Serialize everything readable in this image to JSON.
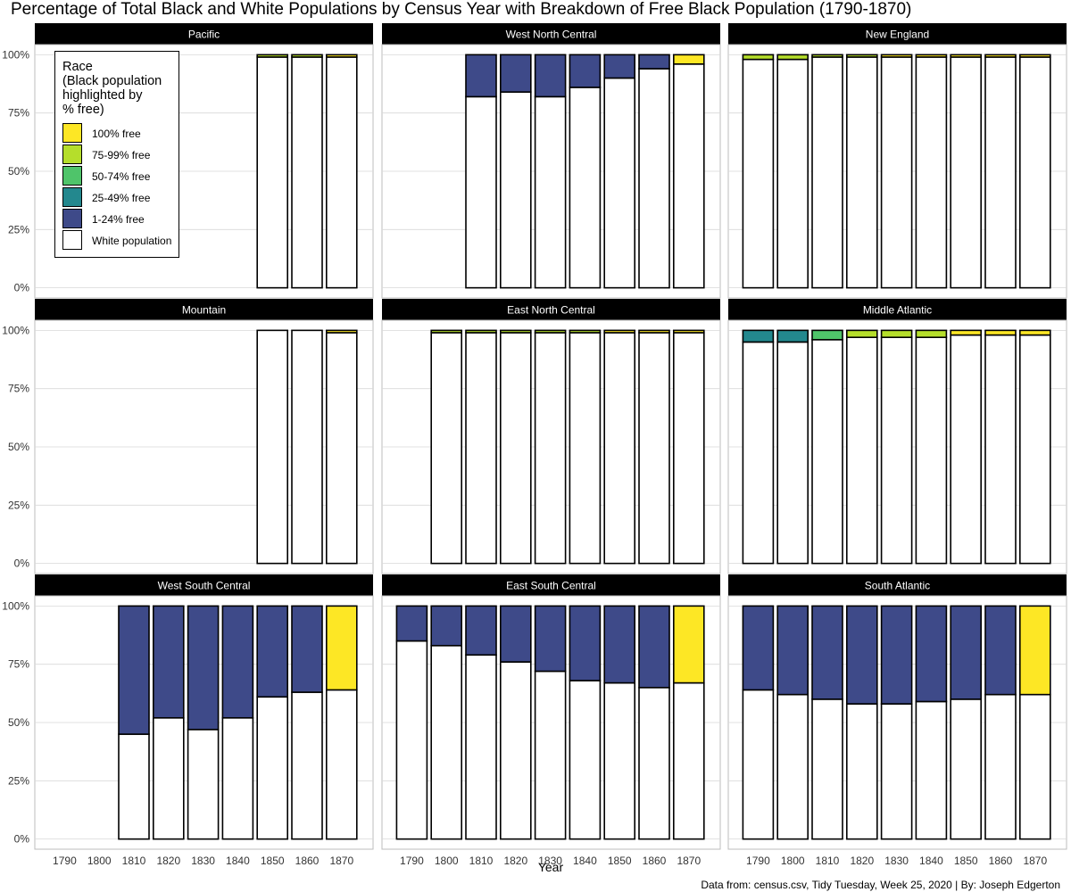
{
  "chart_data": {
    "type": "bar",
    "stacked": true,
    "title": "Percentage of Total Black and White Populations by Census Year with Breakdown of Free Black Population (1790-1870)",
    "xlabel": "Year",
    "ylabel": "",
    "ylim": [
      0,
      1
    ],
    "yticks": [
      "0%",
      "25%",
      "50%",
      "75%",
      "100%"
    ],
    "categories": [
      "1790",
      "1800",
      "1810",
      "1820",
      "1830",
      "1840",
      "1850",
      "1860",
      "1870"
    ],
    "grid": true,
    "legend_position": "top-left",
    "caption": "Data from: census.csv, Tidy Tuesday, Week 25, 2020 | By: Joseph Edgerton",
    "legend": {
      "title": "Race\n(Black population\nhighlighted by\n% free)",
      "items": [
        {
          "key": "free100",
          "label": "100% free",
          "color": "#FDE725"
        },
        {
          "key": "free75",
          "label": "75-99% free",
          "color": "#B5DE2B"
        },
        {
          "key": "free50",
          "label": "50-74% free",
          "color": "#4FC46A"
        },
        {
          "key": "free25",
          "label": "25-49% free",
          "color": "#23888E"
        },
        {
          "key": "free1",
          "label": "1-24% free",
          "color": "#3E4A89"
        },
        {
          "key": "white",
          "label": "White population",
          "color": "#FFFFFF"
        }
      ]
    },
    "panels": [
      {
        "name": "Pacific",
        "bars": [
          {
            "year": "1850",
            "white": 0.99,
            "black": 0.01,
            "black_category": "free75"
          },
          {
            "year": "1860",
            "white": 0.99,
            "black": 0.01,
            "black_category": "free75"
          },
          {
            "year": "1870",
            "white": 0.99,
            "black": 0.01,
            "black_category": "free100"
          }
        ]
      },
      {
        "name": "West North Central",
        "bars": [
          {
            "year": "1810",
            "white": 0.82,
            "black": 0.18,
            "black_category": "free1"
          },
          {
            "year": "1820",
            "white": 0.84,
            "black": 0.16,
            "black_category": "free1"
          },
          {
            "year": "1830",
            "white": 0.82,
            "black": 0.18,
            "black_category": "free1"
          },
          {
            "year": "1840",
            "white": 0.86,
            "black": 0.14,
            "black_category": "free1"
          },
          {
            "year": "1850",
            "white": 0.9,
            "black": 0.1,
            "black_category": "free1"
          },
          {
            "year": "1860",
            "white": 0.94,
            "black": 0.06,
            "black_category": "free1"
          },
          {
            "year": "1870",
            "white": 0.96,
            "black": 0.04,
            "black_category": "free100"
          }
        ]
      },
      {
        "name": "New England",
        "bars": [
          {
            "year": "1790",
            "white": 0.98,
            "black": 0.02,
            "black_category": "free75"
          },
          {
            "year": "1800",
            "white": 0.98,
            "black": 0.02,
            "black_category": "free75"
          },
          {
            "year": "1810",
            "white": 0.99,
            "black": 0.01,
            "black_category": "free75"
          },
          {
            "year": "1820",
            "white": 0.99,
            "black": 0.01,
            "black_category": "free75"
          },
          {
            "year": "1830",
            "white": 0.99,
            "black": 0.01,
            "black_category": "free100"
          },
          {
            "year": "1840",
            "white": 0.99,
            "black": 0.01,
            "black_category": "free100"
          },
          {
            "year": "1850",
            "white": 0.99,
            "black": 0.01,
            "black_category": "free100"
          },
          {
            "year": "1860",
            "white": 0.99,
            "black": 0.01,
            "black_category": "free100"
          },
          {
            "year": "1870",
            "white": 0.99,
            "black": 0.01,
            "black_category": "free100"
          }
        ]
      },
      {
        "name": "Mountain",
        "bars": [
          {
            "year": "1850",
            "white": 1.0,
            "black": 0.0,
            "black_category": "free100"
          },
          {
            "year": "1860",
            "white": 1.0,
            "black": 0.0,
            "black_category": "free100"
          },
          {
            "year": "1870",
            "white": 0.99,
            "black": 0.01,
            "black_category": "free100"
          }
        ]
      },
      {
        "name": "East North Central",
        "bars": [
          {
            "year": "1800",
            "white": 0.99,
            "black": 0.01,
            "black_category": "free75"
          },
          {
            "year": "1810",
            "white": 0.99,
            "black": 0.01,
            "black_category": "free75"
          },
          {
            "year": "1820",
            "white": 0.99,
            "black": 0.01,
            "black_category": "free75"
          },
          {
            "year": "1830",
            "white": 0.99,
            "black": 0.01,
            "black_category": "free75"
          },
          {
            "year": "1840",
            "white": 0.99,
            "black": 0.01,
            "black_category": "free75"
          },
          {
            "year": "1850",
            "white": 0.99,
            "black": 0.01,
            "black_category": "free100"
          },
          {
            "year": "1860",
            "white": 0.99,
            "black": 0.01,
            "black_category": "free100"
          },
          {
            "year": "1870",
            "white": 0.99,
            "black": 0.01,
            "black_category": "free100"
          }
        ]
      },
      {
        "name": "Middle Atlantic",
        "bars": [
          {
            "year": "1790",
            "white": 0.95,
            "black": 0.05,
            "black_category": "free25"
          },
          {
            "year": "1800",
            "white": 0.95,
            "black": 0.05,
            "black_category": "free25"
          },
          {
            "year": "1810",
            "white": 0.96,
            "black": 0.04,
            "black_category": "free50"
          },
          {
            "year": "1820",
            "white": 0.97,
            "black": 0.03,
            "black_category": "free75"
          },
          {
            "year": "1830",
            "white": 0.97,
            "black": 0.03,
            "black_category": "free75"
          },
          {
            "year": "1840",
            "white": 0.97,
            "black": 0.03,
            "black_category": "free75"
          },
          {
            "year": "1850",
            "white": 0.98,
            "black": 0.02,
            "black_category": "free100"
          },
          {
            "year": "1860",
            "white": 0.98,
            "black": 0.02,
            "black_category": "free100"
          },
          {
            "year": "1870",
            "white": 0.98,
            "black": 0.02,
            "black_category": "free100"
          }
        ]
      },
      {
        "name": "West South Central",
        "bars": [
          {
            "year": "1810",
            "white": 0.45,
            "black": 0.55,
            "black_category": "free1"
          },
          {
            "year": "1820",
            "white": 0.52,
            "black": 0.48,
            "black_category": "free1"
          },
          {
            "year": "1830",
            "white": 0.47,
            "black": 0.53,
            "black_category": "free1"
          },
          {
            "year": "1840",
            "white": 0.52,
            "black": 0.48,
            "black_category": "free1"
          },
          {
            "year": "1850",
            "white": 0.61,
            "black": 0.39,
            "black_category": "free1"
          },
          {
            "year": "1860",
            "white": 0.63,
            "black": 0.37,
            "black_category": "free1"
          },
          {
            "year": "1870",
            "white": 0.64,
            "black": 0.36,
            "black_category": "free100"
          }
        ]
      },
      {
        "name": "East South Central",
        "bars": [
          {
            "year": "1790",
            "white": 0.85,
            "black": 0.15,
            "black_category": "free1"
          },
          {
            "year": "1800",
            "white": 0.83,
            "black": 0.17,
            "black_category": "free1"
          },
          {
            "year": "1810",
            "white": 0.79,
            "black": 0.21,
            "black_category": "free1"
          },
          {
            "year": "1820",
            "white": 0.76,
            "black": 0.24,
            "black_category": "free1"
          },
          {
            "year": "1830",
            "white": 0.72,
            "black": 0.28,
            "black_category": "free1"
          },
          {
            "year": "1840",
            "white": 0.68,
            "black": 0.32,
            "black_category": "free1"
          },
          {
            "year": "1850",
            "white": 0.67,
            "black": 0.33,
            "black_category": "free1"
          },
          {
            "year": "1860",
            "white": 0.65,
            "black": 0.35,
            "black_category": "free1"
          },
          {
            "year": "1870",
            "white": 0.67,
            "black": 0.33,
            "black_category": "free100"
          }
        ]
      },
      {
        "name": "South Atlantic",
        "bars": [
          {
            "year": "1790",
            "white": 0.64,
            "black": 0.36,
            "black_category": "free1"
          },
          {
            "year": "1800",
            "white": 0.62,
            "black": 0.38,
            "black_category": "free1"
          },
          {
            "year": "1810",
            "white": 0.6,
            "black": 0.4,
            "black_category": "free1"
          },
          {
            "year": "1820",
            "white": 0.58,
            "black": 0.42,
            "black_category": "free1"
          },
          {
            "year": "1830",
            "white": 0.58,
            "black": 0.42,
            "black_category": "free1"
          },
          {
            "year": "1840",
            "white": 0.59,
            "black": 0.41,
            "black_category": "free1"
          },
          {
            "year": "1850",
            "white": 0.6,
            "black": 0.4,
            "black_category": "free1"
          },
          {
            "year": "1860",
            "white": 0.62,
            "black": 0.38,
            "black_category": "free1"
          },
          {
            "year": "1870",
            "white": 0.62,
            "black": 0.38,
            "black_category": "free100"
          }
        ]
      }
    ]
  }
}
